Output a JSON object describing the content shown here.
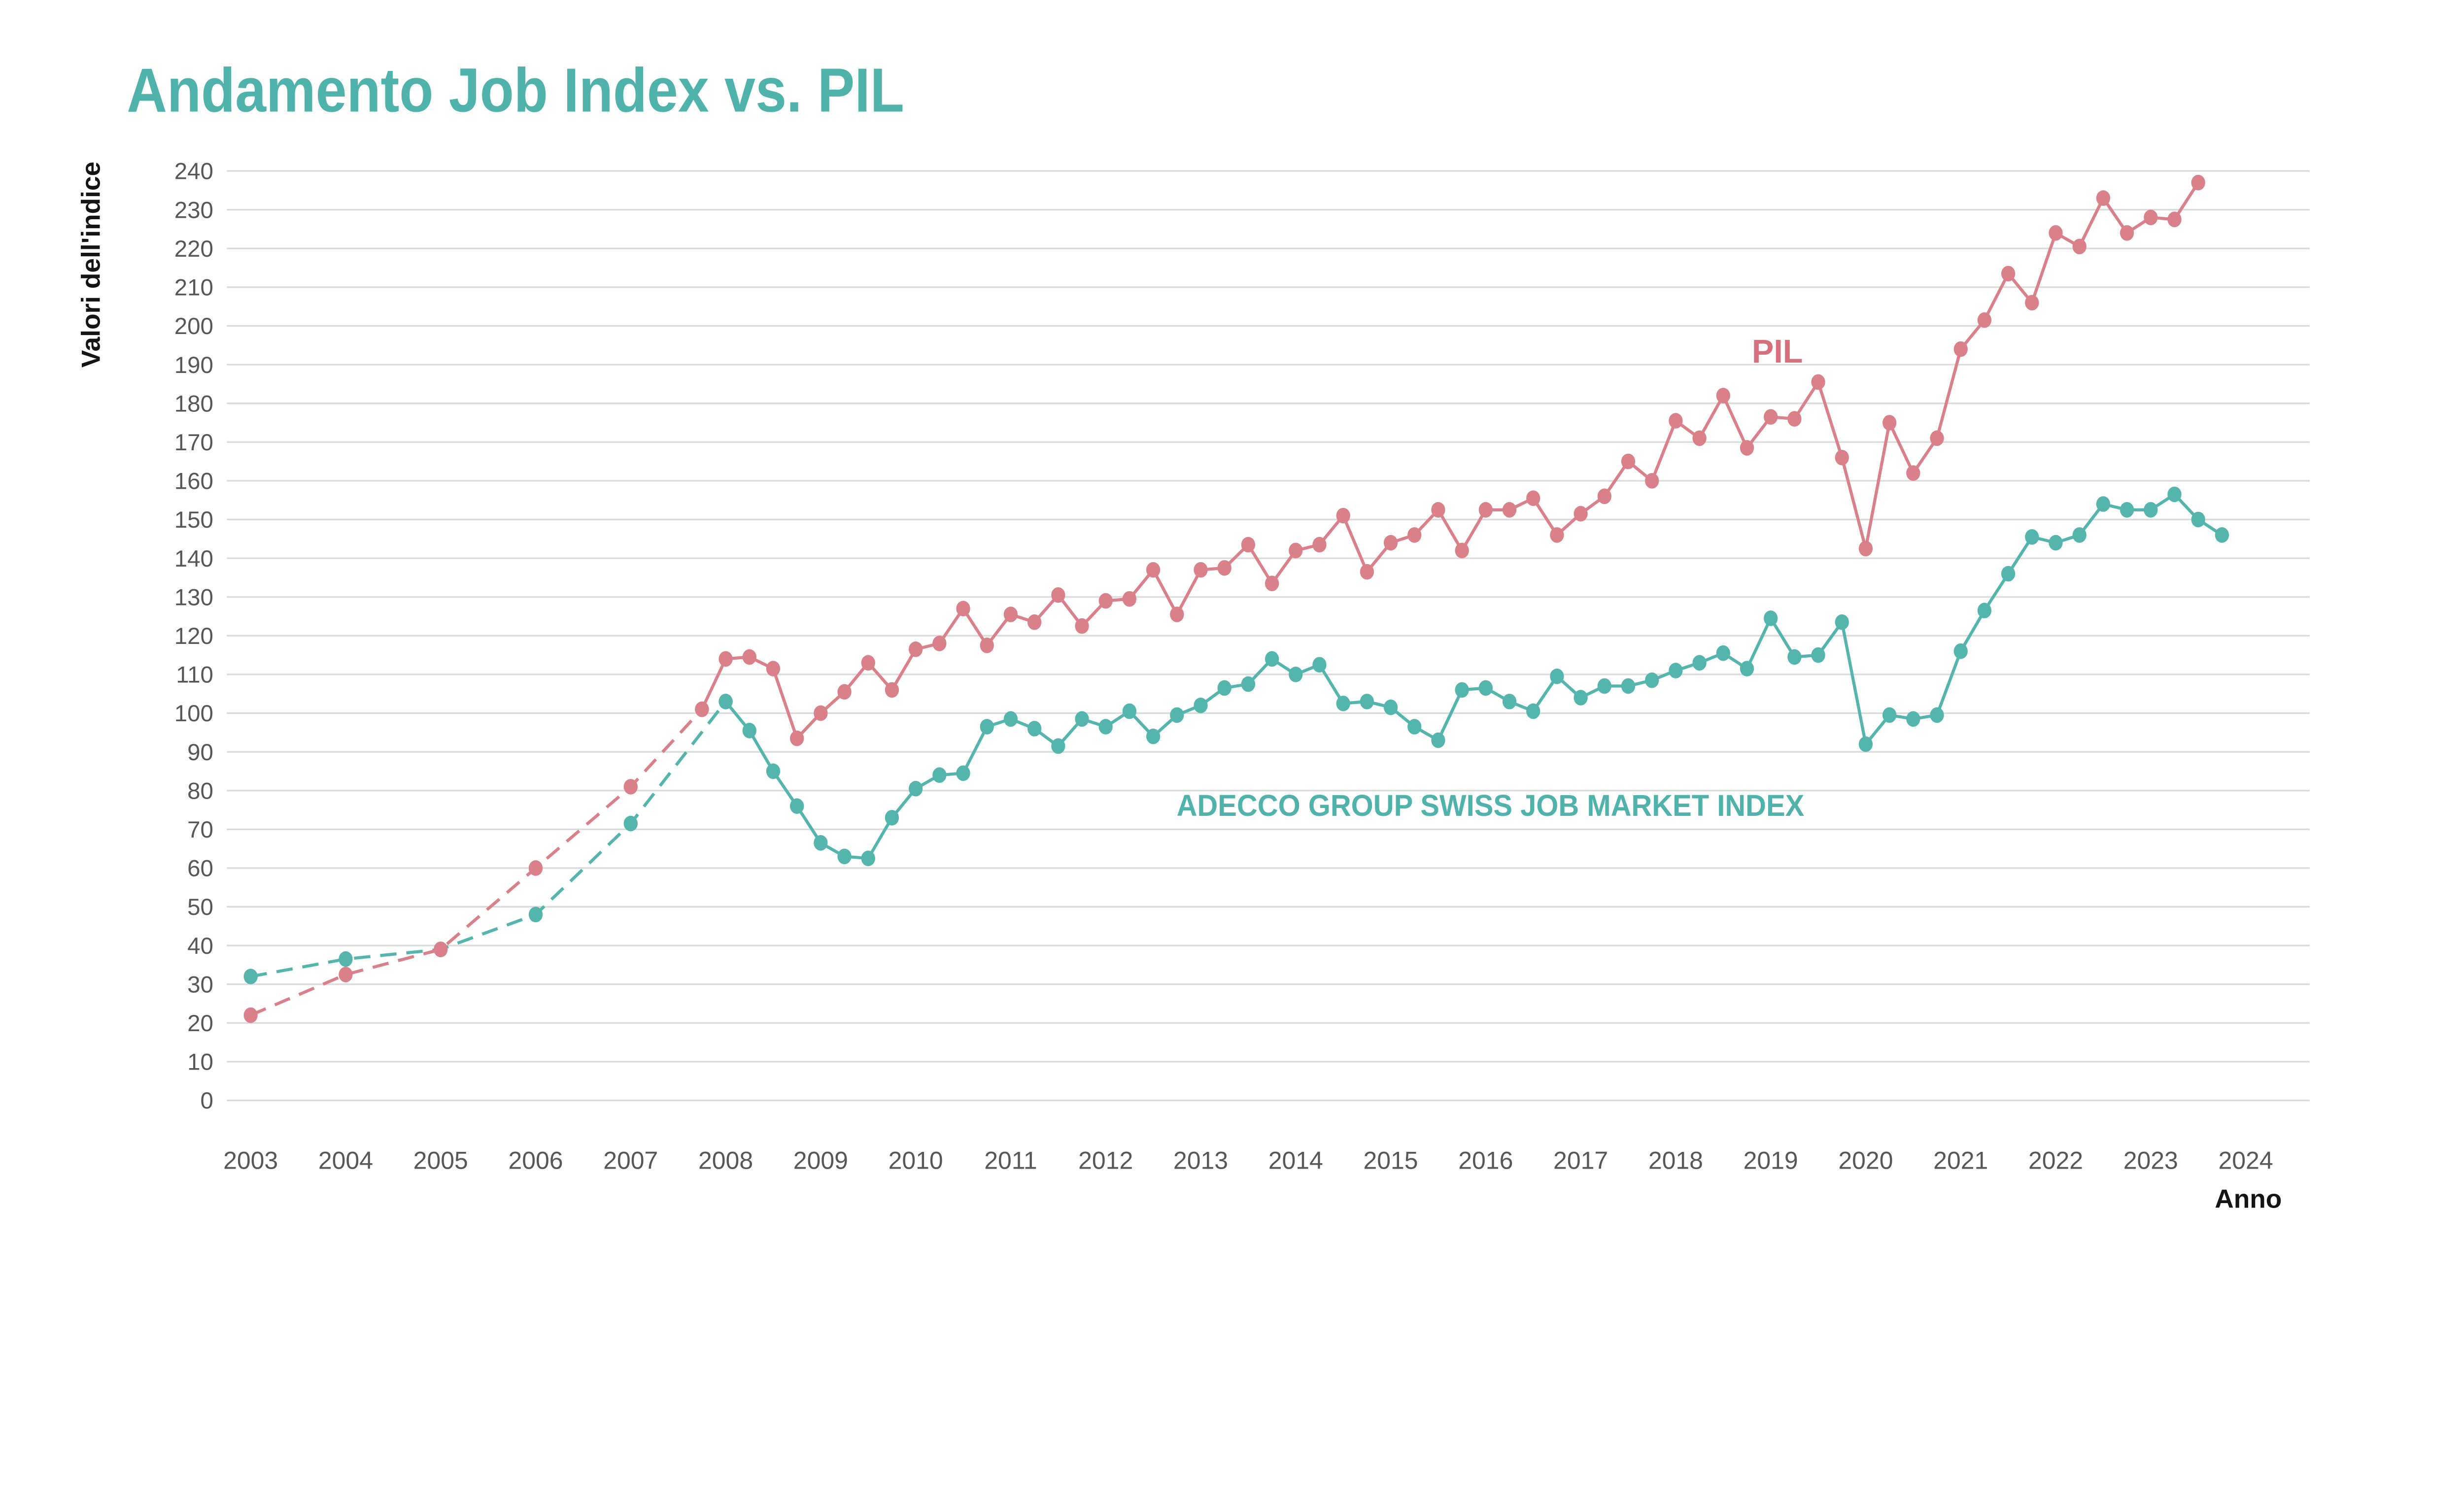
{
  "title": {
    "text": "Andamento Job Index vs. PIL"
  },
  "axes": {
    "y": {
      "label": "Valori dell'indice",
      "min": 0,
      "max": 240,
      "step": 10,
      "ticks": [
        0,
        10,
        20,
        30,
        40,
        50,
        60,
        70,
        80,
        90,
        100,
        110,
        120,
        130,
        140,
        150,
        160,
        170,
        180,
        190,
        200,
        210,
        220,
        230,
        240
      ]
    },
    "x": {
      "label": "Anno",
      "years": [
        2003,
        2004,
        2005,
        2006,
        2007,
        2008,
        2009,
        2010,
        2011,
        2012,
        2013,
        2014,
        2015,
        2016,
        2017,
        2018,
        2019,
        2020,
        2021,
        2022,
        2023,
        2024
      ]
    }
  },
  "colors": {
    "teal": "#54B5AD",
    "red": "#D9808A",
    "pil_label": "#D6707E",
    "adecco_label": "#4FB3AB",
    "title": "#4FB3AB",
    "grid": "#DBDBDB",
    "tick_text": "#57575A",
    "axis_label_text": "#141414",
    "background": "#FFFFFF"
  },
  "chart_data": {
    "type": "line",
    "x_range": [
      2003,
      2024
    ],
    "y_range": [
      0,
      240
    ],
    "grid": "horizontal-only",
    "legend": "inline-labels",
    "note": "Yearly points 2003-2007 joined by dashed lines; quarterly points thereafter joined by solid lines",
    "series": [
      {
        "name": "ADECCO GROUP SWISS JOB MARKET INDEX",
        "label": "ADECCO GROUP SWISS JOB MARKET INDEX",
        "color_key": "teal",
        "label_color_key": "adecco_label",
        "label_anchor": {
          "t": 2016.05,
          "v": 73.5
        },
        "dashed_points": [
          [
            2003,
            32
          ],
          [
            2004,
            36.5
          ],
          [
            2005,
            39
          ],
          [
            2006,
            48
          ],
          [
            2007,
            71.5
          ],
          [
            2008,
            103
          ]
        ],
        "solid_points": [
          [
            2008,
            103
          ],
          [
            2008.25,
            95.5
          ],
          [
            2008.5,
            85
          ],
          [
            2008.75,
            76
          ],
          [
            2009,
            66.5
          ],
          [
            2009.25,
            63
          ],
          [
            2009.5,
            62.5
          ],
          [
            2009.75,
            73
          ],
          [
            2010,
            80.5
          ],
          [
            2010.25,
            84
          ],
          [
            2010.5,
            84.5
          ],
          [
            2010.75,
            96.5
          ],
          [
            2011,
            98.5
          ],
          [
            2011.25,
            96
          ],
          [
            2011.5,
            91.5
          ],
          [
            2011.75,
            98.5
          ],
          [
            2012,
            96.5
          ],
          [
            2012.25,
            100.5
          ],
          [
            2012.5,
            94
          ],
          [
            2012.75,
            99.5
          ],
          [
            2013,
            102
          ],
          [
            2013.25,
            106.5
          ],
          [
            2013.5,
            107.5
          ],
          [
            2013.75,
            114
          ],
          [
            2014,
            110
          ],
          [
            2014.25,
            112.5
          ],
          [
            2014.5,
            102.5
          ],
          [
            2014.75,
            103
          ],
          [
            2015,
            101.5
          ],
          [
            2015.25,
            96.5
          ],
          [
            2015.5,
            93
          ],
          [
            2015.75,
            106
          ],
          [
            2016,
            106.5
          ],
          [
            2016.25,
            103
          ],
          [
            2016.5,
            100.5
          ],
          [
            2016.75,
            109.5
          ],
          [
            2017,
            104
          ],
          [
            2017.25,
            107
          ],
          [
            2017.5,
            107
          ],
          [
            2017.75,
            108.5
          ],
          [
            2018,
            111
          ],
          [
            2018.25,
            113
          ],
          [
            2018.5,
            115.5
          ],
          [
            2018.75,
            111.5
          ],
          [
            2019,
            124.5
          ],
          [
            2019.25,
            114.5
          ],
          [
            2019.5,
            115
          ],
          [
            2019.75,
            123.5
          ],
          [
            2020,
            92
          ],
          [
            2020.25,
            99.5
          ],
          [
            2020.5,
            98.5
          ],
          [
            2020.75,
            99.5
          ],
          [
            2021,
            116
          ],
          [
            2021.25,
            126.5
          ],
          [
            2021.5,
            136
          ],
          [
            2021.75,
            145.5
          ],
          [
            2022,
            144
          ],
          [
            2022.25,
            146
          ],
          [
            2022.5,
            154
          ],
          [
            2022.75,
            152.5
          ],
          [
            2023,
            152.5
          ],
          [
            2023.25,
            156.5
          ],
          [
            2023.5,
            150
          ],
          [
            2023.75,
            146
          ]
        ]
      },
      {
        "name": "PIL",
        "label": "PIL",
        "color_key": "red",
        "label_color_key": "pil_label",
        "label_anchor": {
          "t": 2019.07,
          "v": 190.5
        },
        "dashed_points": [
          [
            2003,
            22
          ],
          [
            2004,
            32.5
          ],
          [
            2005,
            39
          ],
          [
            2006,
            60
          ],
          [
            2007,
            81
          ],
          [
            2007.75,
            101
          ]
        ],
        "solid_points": [
          [
            2007.75,
            101
          ],
          [
            2008,
            114
          ],
          [
            2008.25,
            114.5
          ],
          [
            2008.5,
            111.5
          ],
          [
            2008.75,
            93.5
          ],
          [
            2009,
            100
          ],
          [
            2009.25,
            105.5
          ],
          [
            2009.5,
            113
          ],
          [
            2009.75,
            106
          ],
          [
            2010,
            116.5
          ],
          [
            2010.25,
            118
          ],
          [
            2010.5,
            127
          ],
          [
            2010.75,
            117.5
          ],
          [
            2011,
            125.5
          ],
          [
            2011.25,
            123.5
          ],
          [
            2011.5,
            130.5
          ],
          [
            2011.75,
            122.5
          ],
          [
            2012,
            129
          ],
          [
            2012.25,
            129.5
          ],
          [
            2012.5,
            137
          ],
          [
            2012.75,
            125.5
          ],
          [
            2013,
            137
          ],
          [
            2013.25,
            137.5
          ],
          [
            2013.5,
            143.5
          ],
          [
            2013.75,
            133.5
          ],
          [
            2014,
            142
          ],
          [
            2014.25,
            143.5
          ],
          [
            2014.5,
            151
          ],
          [
            2014.75,
            136.5
          ],
          [
            2015,
            144
          ],
          [
            2015.25,
            146
          ],
          [
            2015.5,
            152.5
          ],
          [
            2015.75,
            142
          ],
          [
            2016,
            152.5
          ],
          [
            2016.25,
            152.5
          ],
          [
            2016.5,
            155.5
          ],
          [
            2016.75,
            146
          ],
          [
            2017,
            151.5
          ],
          [
            2017.25,
            156
          ],
          [
            2017.5,
            165
          ],
          [
            2017.75,
            160
          ],
          [
            2018,
            175.5
          ],
          [
            2018.25,
            171
          ],
          [
            2018.5,
            182
          ],
          [
            2018.75,
            168.5
          ],
          [
            2019,
            176.5
          ],
          [
            2019.25,
            176
          ],
          [
            2019.5,
            185.5
          ],
          [
            2019.75,
            166
          ],
          [
            2020,
            142.5
          ],
          [
            2020.25,
            175
          ],
          [
            2020.5,
            162
          ],
          [
            2020.75,
            171
          ],
          [
            2021,
            194
          ],
          [
            2021.25,
            201.5
          ],
          [
            2021.5,
            213.5
          ],
          [
            2021.75,
            206
          ],
          [
            2022,
            224
          ],
          [
            2022.25,
            220.5
          ],
          [
            2022.5,
            233
          ],
          [
            2022.75,
            224
          ],
          [
            2023,
            228
          ],
          [
            2023.25,
            227.5
          ],
          [
            2023.5,
            237
          ]
        ]
      }
    ]
  }
}
